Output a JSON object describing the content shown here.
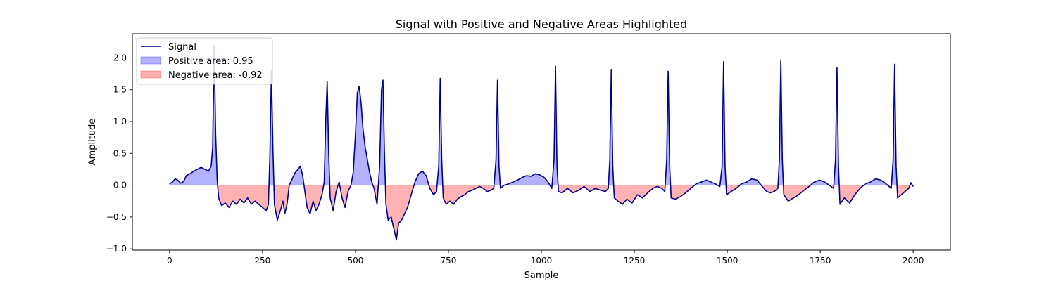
{
  "chart_data": {
    "type": "line",
    "title": "Signal with Positive and Negative Areas Highlighted",
    "xlabel": "Sample",
    "ylabel": "Amplitude",
    "xlim": [
      -100,
      2100
    ],
    "ylim": [
      -1.02,
      2.38
    ],
    "xticks": [
      0,
      250,
      500,
      750,
      1000,
      1250,
      1500,
      1750,
      2000
    ],
    "xtick_labels": [
      "0",
      "250",
      "500",
      "750",
      "1000",
      "1250",
      "1500",
      "1750",
      "2000"
    ],
    "yticks": [
      -1.0,
      -0.5,
      0.0,
      0.5,
      1.0,
      1.5,
      2.0
    ],
    "ytick_labels": [
      "−1.0",
      "−0.5",
      "0.0",
      "0.5",
      "1.0",
      "1.5",
      "2.0"
    ],
    "legend": {
      "placement": "top-left",
      "entries": [
        {
          "label": "Signal",
          "kind": "line",
          "color": "#00008b"
        },
        {
          "label": "Positive area: 0.95",
          "kind": "patch",
          "color": "#0000ff"
        },
        {
          "label": "Negative area: -0.92",
          "kind": "patch",
          "color": "#ff0000"
        }
      ]
    },
    "series": [
      {
        "name": "Signal",
        "color": "#00008b",
        "points": [
          [
            0,
            0.02
          ],
          [
            8,
            0.05
          ],
          [
            15,
            0.1
          ],
          [
            22,
            0.08
          ],
          [
            30,
            0.03
          ],
          [
            38,
            0.06
          ],
          [
            45,
            0.15
          ],
          [
            55,
            0.18
          ],
          [
            65,
            0.22
          ],
          [
            75,
            0.25
          ],
          [
            85,
            0.28
          ],
          [
            95,
            0.25
          ],
          [
            105,
            0.22
          ],
          [
            112,
            0.3
          ],
          [
            116,
            0.6
          ],
          [
            120,
            2.2
          ],
          [
            124,
            0.8
          ],
          [
            128,
            0.1
          ],
          [
            132,
            -0.2
          ],
          [
            140,
            -0.32
          ],
          [
            150,
            -0.28
          ],
          [
            160,
            -0.35
          ],
          [
            170,
            -0.25
          ],
          [
            180,
            -0.3
          ],
          [
            190,
            -0.22
          ],
          [
            200,
            -0.28
          ],
          [
            210,
            -0.2
          ],
          [
            220,
            -0.3
          ],
          [
            230,
            -0.25
          ],
          [
            240,
            -0.3
          ],
          [
            250,
            -0.35
          ],
          [
            260,
            -0.4
          ],
          [
            266,
            -0.3
          ],
          [
            270,
            0.5
          ],
          [
            274,
            1.8
          ],
          [
            278,
            0.6
          ],
          [
            282,
            -0.3
          ],
          [
            290,
            -0.55
          ],
          [
            298,
            -0.4
          ],
          [
            305,
            -0.25
          ],
          [
            310,
            -0.45
          ],
          [
            316,
            -0.3
          ],
          [
            322,
            0.0
          ],
          [
            330,
            0.1
          ],
          [
            338,
            0.2
          ],
          [
            346,
            0.25
          ],
          [
            352,
            0.3
          ],
          [
            358,
            0.15
          ],
          [
            364,
            -0.1
          ],
          [
            370,
            -0.35
          ],
          [
            378,
            -0.45
          ],
          [
            386,
            -0.25
          ],
          [
            394,
            -0.4
          ],
          [
            402,
            -0.3
          ],
          [
            410,
            -0.15
          ],
          [
            416,
            0.05
          ],
          [
            420,
            1.0
          ],
          [
            424,
            1.63
          ],
          [
            428,
            0.5
          ],
          [
            432,
            -0.2
          ],
          [
            440,
            -0.4
          ],
          [
            448,
            -0.1
          ],
          [
            456,
            0.05
          ],
          [
            464,
            -0.2
          ],
          [
            472,
            -0.35
          ],
          [
            480,
            -0.1
          ],
          [
            488,
            0.0
          ],
          [
            494,
            0.2
          ],
          [
            500,
            0.8
          ],
          [
            505,
            1.45
          ],
          [
            510,
            1.55
          ],
          [
            515,
            1.3
          ],
          [
            520,
            0.9
          ],
          [
            526,
            0.6
          ],
          [
            532,
            0.4
          ],
          [
            538,
            0.2
          ],
          [
            544,
            0.05
          ],
          [
            550,
            -0.05
          ],
          [
            558,
            -0.3
          ],
          [
            565,
            0.3
          ],
          [
            570,
            1.5
          ],
          [
            574,
            1.65
          ],
          [
            578,
            0.5
          ],
          [
            582,
            -0.3
          ],
          [
            588,
            -0.55
          ],
          [
            596,
            -0.5
          ],
          [
            604,
            -0.7
          ],
          [
            610,
            -0.86
          ],
          [
            616,
            -0.6
          ],
          [
            624,
            -0.55
          ],
          [
            632,
            -0.45
          ],
          [
            640,
            -0.35
          ],
          [
            650,
            -0.15
          ],
          [
            660,
            0.05
          ],
          [
            670,
            0.18
          ],
          [
            680,
            0.22
          ],
          [
            690,
            0.15
          ],
          [
            700,
            -0.05
          ],
          [
            710,
            -0.15
          ],
          [
            718,
            -0.1
          ],
          [
            724,
            0.3
          ],
          [
            728,
            1.68
          ],
          [
            732,
            0.4
          ],
          [
            736,
            -0.2
          ],
          [
            744,
            -0.3
          ],
          [
            754,
            -0.25
          ],
          [
            764,
            -0.3
          ],
          [
            774,
            -0.22
          ],
          [
            784,
            -0.18
          ],
          [
            794,
            -0.15
          ],
          [
            804,
            -0.1
          ],
          [
            814,
            -0.08
          ],
          [
            824,
            -0.05
          ],
          [
            834,
            -0.02
          ],
          [
            844,
            -0.05
          ],
          [
            854,
            -0.1
          ],
          [
            864,
            -0.08
          ],
          [
            872,
            -0.05
          ],
          [
            878,
            0.4
          ],
          [
            882,
            1.65
          ],
          [
            886,
            0.3
          ],
          [
            890,
            -0.05
          ],
          [
            900,
            0.0
          ],
          [
            912,
            0.02
          ],
          [
            924,
            0.05
          ],
          [
            936,
            0.08
          ],
          [
            948,
            0.12
          ],
          [
            960,
            0.15
          ],
          [
            972,
            0.14
          ],
          [
            984,
            0.18
          ],
          [
            996,
            0.16
          ],
          [
            1008,
            0.12
          ],
          [
            1018,
            0.05
          ],
          [
            1028,
            -0.05
          ],
          [
            1034,
            0.4
          ],
          [
            1038,
            1.87
          ],
          [
            1042,
            0.3
          ],
          [
            1046,
            -0.1
          ],
          [
            1056,
            -0.12
          ],
          [
            1070,
            -0.05
          ],
          [
            1085,
            -0.12
          ],
          [
            1100,
            -0.08
          ],
          [
            1115,
            -0.02
          ],
          [
            1130,
            -0.1
          ],
          [
            1145,
            -0.05
          ],
          [
            1160,
            -0.08
          ],
          [
            1172,
            -0.1
          ],
          [
            1180,
            -0.05
          ],
          [
            1184,
            0.4
          ],
          [
            1188,
            1.82
          ],
          [
            1192,
            0.3
          ],
          [
            1196,
            -0.2
          ],
          [
            1206,
            -0.25
          ],
          [
            1218,
            -0.3
          ],
          [
            1230,
            -0.22
          ],
          [
            1244,
            -0.28
          ],
          [
            1258,
            -0.15
          ],
          [
            1272,
            -0.2
          ],
          [
            1286,
            -0.12
          ],
          [
            1300,
            -0.05
          ],
          [
            1312,
            -0.02
          ],
          [
            1324,
            -0.05
          ],
          [
            1332,
            -0.1
          ],
          [
            1337,
            0.4
          ],
          [
            1341,
            1.79
          ],
          [
            1345,
            0.3
          ],
          [
            1349,
            -0.2
          ],
          [
            1360,
            -0.22
          ],
          [
            1374,
            -0.18
          ],
          [
            1388,
            -0.12
          ],
          [
            1402,
            -0.05
          ],
          [
            1416,
            0.02
          ],
          [
            1430,
            0.05
          ],
          [
            1444,
            0.08
          ],
          [
            1456,
            0.05
          ],
          [
            1468,
            0.02
          ],
          [
            1480,
            -0.02
          ],
          [
            1486,
            0.3
          ],
          [
            1490,
            1.94
          ],
          [
            1494,
            0.3
          ],
          [
            1498,
            -0.15
          ],
          [
            1510,
            -0.1
          ],
          [
            1524,
            -0.05
          ],
          [
            1538,
            0.02
          ],
          [
            1552,
            0.05
          ],
          [
            1566,
            0.1
          ],
          [
            1580,
            0.08
          ],
          [
            1594,
            -0.02
          ],
          [
            1606,
            -0.1
          ],
          [
            1616,
            -0.12
          ],
          [
            1626,
            -0.1
          ],
          [
            1636,
            -0.05
          ],
          [
            1640,
            0.4
          ],
          [
            1644,
            1.97
          ],
          [
            1648,
            0.4
          ],
          [
            1652,
            -0.15
          ],
          [
            1664,
            -0.25
          ],
          [
            1678,
            -0.2
          ],
          [
            1692,
            -0.15
          ],
          [
            1706,
            -0.08
          ],
          [
            1720,
            -0.02
          ],
          [
            1734,
            0.05
          ],
          [
            1748,
            0.08
          ],
          [
            1762,
            0.05
          ],
          [
            1774,
            0.0
          ],
          [
            1786,
            -0.05
          ],
          [
            1791,
            0.4
          ],
          [
            1795,
            1.85
          ],
          [
            1799,
            0.3
          ],
          [
            1803,
            -0.3
          ],
          [
            1815,
            -0.2
          ],
          [
            1829,
            -0.28
          ],
          [
            1843,
            -0.15
          ],
          [
            1857,
            -0.05
          ],
          [
            1871,
            0.02
          ],
          [
            1885,
            0.05
          ],
          [
            1899,
            0.1
          ],
          [
            1913,
            0.08
          ],
          [
            1927,
            0.02
          ],
          [
            1941,
            -0.05
          ],
          [
            1946,
            0.4
          ],
          [
            1950,
            1.9
          ],
          [
            1954,
            0.3
          ],
          [
            1958,
            -0.2
          ],
          [
            1968,
            -0.15
          ],
          [
            1978,
            -0.1
          ],
          [
            1988,
            -0.05
          ],
          [
            1994,
            0.04
          ],
          [
            2000,
            -0.02
          ]
        ]
      }
    ]
  }
}
